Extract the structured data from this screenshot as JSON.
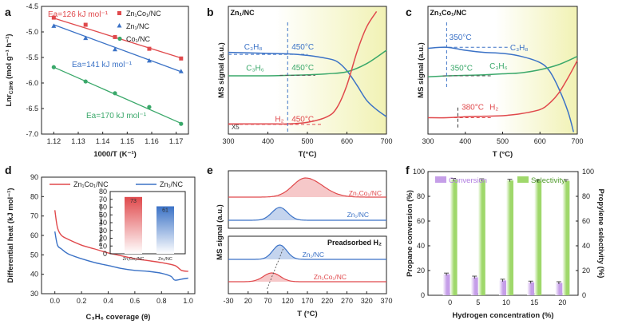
{
  "chart_data": [
    {
      "panel": "a",
      "type": "scatter",
      "xlabel": "1000/T (K⁻¹)",
      "ylabel": "Lnr_C3H6 (mol g⁻¹ h⁻¹)",
      "xlim": [
        1.115,
        1.175
      ],
      "ylim": [
        -7.0,
        -4.5
      ],
      "xticks": [
        "1.12",
        "1.13",
        "1.14",
        "1.15",
        "1.16",
        "1.17"
      ],
      "yticks": [
        "-4.5",
        "-5.0",
        "-5.5",
        "-6.0",
        "-6.5",
        "-7.0"
      ],
      "series": [
        {
          "name": "Zn1Co1/NC",
          "color": "#e0494c",
          "marker": "square",
          "x": [
            1.12,
            1.133,
            1.145,
            1.159,
            1.172
          ],
          "y": [
            -4.72,
            -4.86,
            -5.1,
            -5.33,
            -5.52
          ],
          "fit": [
            [
              1.12,
              -4.73
            ],
            [
              1.172,
              -5.51
            ]
          ]
        },
        {
          "name": "Zn1/NC",
          "color": "#3b72c6",
          "marker": "triangle",
          "x": [
            1.12,
            1.133,
            1.145,
            1.159,
            1.172
          ],
          "y": [
            -4.88,
            -5.12,
            -5.34,
            -5.56,
            -5.77
          ],
          "fit": [
            [
              1.12,
              -4.86
            ],
            [
              1.172,
              -5.78
            ]
          ]
        },
        {
          "name": "Co1/NC",
          "color": "#3aa86a",
          "marker": "circle",
          "x": [
            1.12,
            1.133,
            1.145,
            1.159,
            1.172
          ],
          "y": [
            -5.69,
            -5.97,
            -6.2,
            -6.47,
            -6.8
          ],
          "fit": [
            [
              1.12,
              -5.69
            ],
            [
              1.172,
              -6.79
            ]
          ]
        }
      ],
      "annotations": [
        {
          "text": "Ea=126 kJ mol⁻¹",
          "color": "#e0494c"
        },
        {
          "text": "Ea=141 kJ mol⁻¹",
          "color": "#3b72c6"
        },
        {
          "text": "Ea=170 kJ mol⁻¹",
          "color": "#3aa86a"
        }
      ]
    },
    {
      "panel": "b",
      "type": "line",
      "title": "Zn1/NC",
      "xlabel": "T(°C)",
      "ylabel": "MS signal (a.u.)",
      "xlim": [
        300,
        700
      ],
      "xticks": [
        "300",
        "400",
        "500",
        "600",
        "700"
      ],
      "series": [
        {
          "name": "C3H8",
          "color": "#3b72c6",
          "x": [
            300,
            400,
            450,
            500,
            550,
            575,
            600,
            625,
            650,
            675,
            700
          ],
          "y": [
            0.8,
            0.79,
            0.785,
            0.77,
            0.74,
            0.71,
            0.62,
            0.48,
            0.33,
            0.24,
            0.17
          ]
        },
        {
          "name": "C3H6",
          "color": "#3aa86a",
          "x": [
            300,
            400,
            450,
            500,
            550,
            600,
            650,
            700
          ],
          "y": [
            0.57,
            0.57,
            0.575,
            0.58,
            0.59,
            0.61,
            0.69,
            0.82
          ]
        },
        {
          "name": "H2",
          "color": "#e0494c",
          "x": [
            300,
            400,
            450,
            500,
            550,
            575,
            600,
            625,
            650,
            675
          ],
          "y": [
            0.1,
            0.1,
            0.1,
            0.115,
            0.17,
            0.26,
            0.48,
            0.8,
            1.05,
            1.2
          ]
        }
      ],
      "annotations": [
        {
          "text": "450°C"
        },
        {
          "text": "450°C"
        },
        {
          "text": "450°C"
        },
        {
          "text": "X5"
        }
      ]
    },
    {
      "panel": "c",
      "type": "line",
      "title": "Zn1Co1/NC",
      "xlabel": "T (°C)",
      "ylabel": "MS signal (a.u.)",
      "xlim": [
        300,
        700
      ],
      "xticks": [
        "300",
        "400",
        "500",
        "600",
        "700"
      ],
      "series": [
        {
          "name": "C3H8",
          "color": "#3b72c6",
          "x": [
            300,
            350,
            400,
            450,
            500,
            550,
            600,
            625,
            650,
            675,
            690
          ],
          "y": [
            0.84,
            0.85,
            0.82,
            0.8,
            0.79,
            0.76,
            0.7,
            0.62,
            0.45,
            0.22,
            0.02
          ]
        },
        {
          "name": "C3H6",
          "color": "#3aa86a",
          "x": [
            300,
            350,
            400,
            450,
            500,
            550,
            600,
            650,
            700
          ],
          "y": [
            0.56,
            0.57,
            0.575,
            0.58,
            0.59,
            0.6,
            0.63,
            0.68,
            0.76
          ]
        },
        {
          "name": "H2",
          "color": "#e0494c",
          "x": [
            300,
            350,
            400,
            450,
            500,
            550,
            600,
            625,
            650,
            675,
            700
          ],
          "y": [
            0.16,
            0.16,
            0.17,
            0.175,
            0.18,
            0.2,
            0.24,
            0.3,
            0.4,
            0.55,
            0.72
          ]
        }
      ],
      "annotations": [
        {
          "text": "350°C"
        },
        {
          "text": "350°C"
        },
        {
          "text": "380°C"
        }
      ]
    },
    {
      "panel": "d",
      "type": "line",
      "xlabel": "C3H6 coverage (θ)",
      "ylabel": "Differential heat (kJ mol⁻¹)",
      "xlim": [
        -0.1,
        1.05
      ],
      "ylim": [
        30,
        90
      ],
      "xticks": [
        "0.0",
        "0.2",
        "0.4",
        "0.6",
        "0.8",
        "1.0"
      ],
      "yticks": [
        "30",
        "40",
        "50",
        "60",
        "70",
        "80",
        "90"
      ],
      "series": [
        {
          "name": "Zn1Co1/NC",
          "color": "#e0494c",
          "x": [
            0,
            0.02,
            0.05,
            0.1,
            0.2,
            0.3,
            0.4,
            0.5,
            0.6,
            0.7,
            0.8,
            0.9,
            0.95,
            1.0
          ],
          "y": [
            73,
            64,
            60,
            58,
            55,
            53,
            51,
            49.5,
            48,
            47,
            46,
            44.5,
            42,
            41.5
          ]
        },
        {
          "name": "Zn1/NC",
          "color": "#3b72c6",
          "x": [
            0,
            0.02,
            0.05,
            0.1,
            0.2,
            0.3,
            0.4,
            0.5,
            0.6,
            0.7,
            0.8,
            0.87,
            0.9,
            0.95,
            1.0
          ],
          "y": [
            62,
            55,
            53,
            50.5,
            48,
            46,
            44.5,
            43,
            42,
            41.5,
            40.5,
            39,
            37,
            37.5,
            38
          ]
        }
      ],
      "inset": {
        "type": "bar",
        "ylabel": "Differential heat (kJ mol⁻¹)",
        "categories": [
          "Zn1Co1/NC",
          "Zn1/NC"
        ],
        "values": [
          73,
          61
        ],
        "ylim": [
          0,
          80
        ],
        "yticks": [
          "0",
          "10",
          "20",
          "30",
          "40",
          "50",
          "60",
          "70",
          "80"
        ],
        "colors": [
          "#e0494c",
          "#3b72c6"
        ]
      }
    },
    {
      "panel": "e",
      "type": "area",
      "xlabel": "T (°C)",
      "ylabel": "MS signal (a.u.)",
      "xlim": [
        -30,
        370
      ],
      "xticks": [
        "-30",
        "20",
        "70",
        "120",
        "170",
        "220",
        "270",
        "320",
        "370"
      ],
      "series": [
        {
          "name": "Zn1Co1/NC",
          "color": "#e0494c",
          "center": 165,
          "width": 45,
          "height": 0.55,
          "baseline": 3.3
        },
        {
          "name": "Zn1/NC",
          "color": "#3b72c6",
          "center": 100,
          "width": 28,
          "height": 0.55,
          "baseline": 2.5
        },
        {
          "name": "Zn1/NC",
          "color": "#3b72c6",
          "center": 100,
          "width": 25,
          "height": 0.55,
          "baseline": 1.0,
          "group": "Preadsorbed H2"
        },
        {
          "name": "Zn1Co1/NC",
          "color": "#e0494c",
          "center": 80,
          "width": 30,
          "height": 0.32,
          "baseline": 0.2,
          "group": "Preadsorbed H2"
        }
      ],
      "annotations": [
        {
          "text": "Preadsorbed H₂"
        }
      ]
    },
    {
      "panel": "f",
      "type": "bar",
      "xlabel": "Hydrogen concentration (%)",
      "ylabel": "Propane conversion (%)",
      "ylabel2": "Propylene selectivity (%)",
      "categories": [
        "0",
        "5",
        "10",
        "15",
        "20"
      ],
      "ylim": [
        0,
        100
      ],
      "yticks": [
        "0",
        "20",
        "40",
        "60",
        "80",
        "100"
      ],
      "series": [
        {
          "name": "Conversion",
          "color": "#c59ee8",
          "values": [
            17,
            14.5,
            12,
            10.5,
            10
          ]
        },
        {
          "name": "Selectivity",
          "color": "#9fd86b",
          "values": [
            93.5,
            93.2,
            92.8,
            92.3,
            92.5
          ]
        }
      ]
    }
  ],
  "labels": {
    "a": "a",
    "b": "b",
    "c": "c",
    "d": "d",
    "e": "e",
    "f": "f"
  },
  "colors": {
    "red": "#e0494c",
    "blue": "#3b72c6",
    "green": "#3aa86a",
    "purple": "#c59ee8",
    "lime": "#9fd86b"
  },
  "text": {
    "a_legend": [
      "Zn₁Co₁/NC",
      "Zn₁/NC",
      "Co₁/NC"
    ],
    "a_ea": [
      "Ea=126 kJ mol⁻¹",
      "Ea=141 kJ mol⁻¹",
      "Ea=170 kJ mol⁻¹"
    ],
    "a_xlabel": "1000/T (K⁻¹)",
    "a_ylabel": "Lnr",
    "a_ylabel_sub": "C3H6",
    "a_ylabel_unit": "(mol g⁻¹ h⁻¹)",
    "b_title": "Zn₁/NC",
    "b_c3h8": "C₃H₈",
    "b_c3h6": "C₃H₆",
    "b_h2": "H₂",
    "b_t1": "450°C",
    "b_t2": "450°C",
    "b_t3": "450°C",
    "b_x5": "X5",
    "c_title": "Zn₁Co₁/NC",
    "c_c3h8": "C₃H₈",
    "c_c3h6": "C₃H₆",
    "c_h2": "H₂",
    "c_t1": "350°C",
    "c_t2": "350°C",
    "c_t3": "380°C",
    "ms_ylabel": "MS signal (a.u.)",
    "b_xlabel": "T(°C)",
    "c_xlabel": "T (°C)",
    "d_legend": [
      "Zn₁Co₁/NC",
      "Zn₁/NC"
    ],
    "d_xlabel": "C₃H₆ coverage (θ)",
    "d_ylabel": "Differential heat (kJ mol⁻¹)",
    "d_inset_vals": [
      "73",
      "61"
    ],
    "d_inset_cats": [
      "Zn₁Co₁/NC",
      "Zn₁/NC"
    ],
    "d_inset_ylabel": "Differential heat (kJ mol⁻¹)",
    "e_names": [
      "Zn₁Co₁/NC",
      "Zn₁/NC",
      "Zn₁/NC",
      "Zn₁Co₁/NC"
    ],
    "e_pre": "Preadsorbed H₂",
    "e_xlabel": "T (°C)",
    "e_ylabel": "MS signal (a.u.)",
    "f_legend": [
      "Conversion",
      "Selectivity"
    ],
    "f_xlabel": "Hydrogen concentration (%)",
    "f_ylabel": "Propane conversion (%)",
    "f_ylabel2": "Propylene selectivity (%)"
  }
}
